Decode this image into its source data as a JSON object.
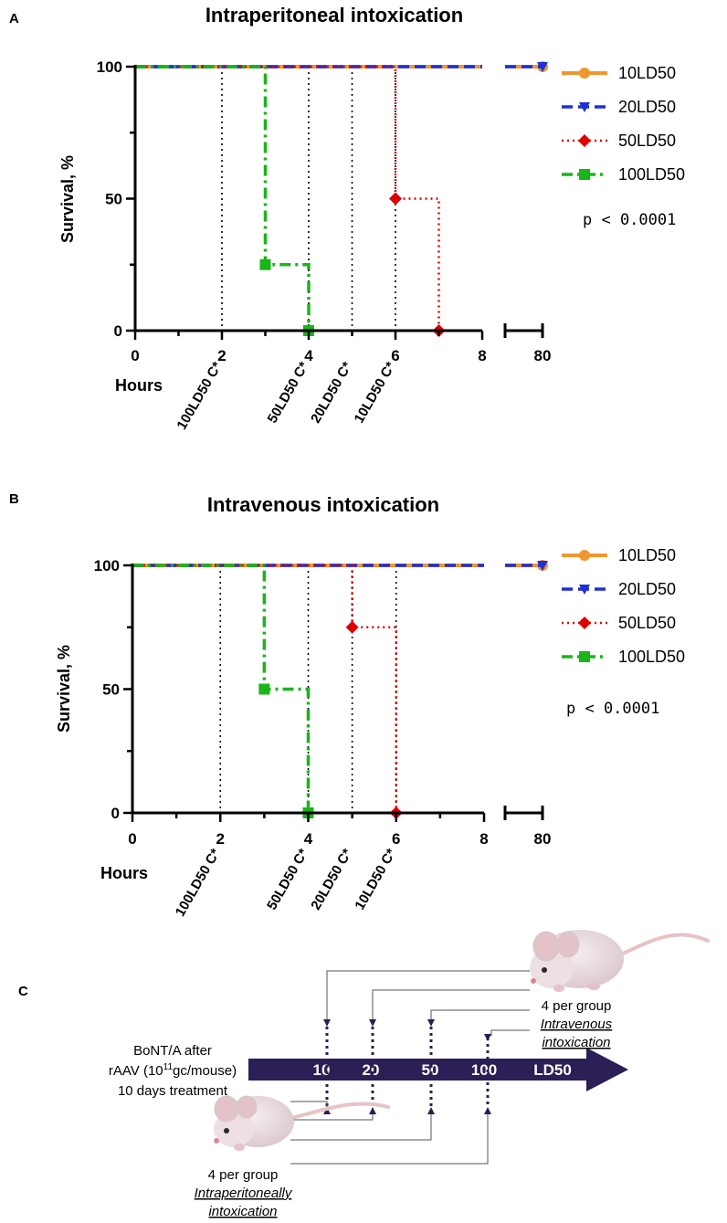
{
  "colors": {
    "10LD50": "#f0962e",
    "20LD50": "#1f2fd6",
    "50LD50": "#e00000",
    "100LD50": "#19b519",
    "arrow": "#2b1f55",
    "connector": "#555555"
  },
  "chart_data": [
    {
      "type": "line",
      "panel_letter": "A",
      "title": "Intraperitoneal intoxication",
      "xlabel": "Hours",
      "ylabel": "Survival, %",
      "xlim_main": [
        0,
        8
      ],
      "x_ticks": [
        "0",
        "2",
        "4",
        "6",
        "8"
      ],
      "x_break_tick": "80",
      "ylim": [
        0,
        100
      ],
      "y_ticks": [
        "0",
        "50",
        "100"
      ],
      "p_value": "p < 0.0001",
      "series": [
        {
          "name": "10LD50",
          "style": "solid",
          "marker": "circle",
          "steps": [
            [
              0,
              100
            ],
            [
              8,
              100
            ]
          ],
          "points": [
            [
              80,
              100
            ]
          ]
        },
        {
          "name": "20LD50",
          "style": "dash",
          "marker": "triangle-down",
          "steps": [
            [
              0,
              100
            ],
            [
              8,
              100
            ]
          ],
          "points": [
            [
              80,
              100
            ]
          ]
        },
        {
          "name": "50LD50",
          "style": "dot",
          "marker": "diamond",
          "steps": [
            [
              0,
              100
            ],
            [
              6,
              100
            ],
            [
              6,
              50
            ],
            [
              7,
              50
            ],
            [
              7,
              0
            ]
          ],
          "points": [
            [
              6,
              50
            ],
            [
              7,
              0
            ]
          ]
        },
        {
          "name": "100LD50",
          "style": "dashdot",
          "marker": "square",
          "steps": [
            [
              0,
              100
            ],
            [
              3,
              100
            ],
            [
              3,
              25
            ],
            [
              4,
              25
            ],
            [
              4,
              0
            ]
          ],
          "points": [
            [
              3,
              25
            ],
            [
              4,
              0
            ]
          ]
        }
      ],
      "time_markers": [
        {
          "x": 2,
          "label": "100LD50 C*"
        },
        {
          "x": 4,
          "label": "50LD50 C*"
        },
        {
          "x": 5,
          "label": "20LD50 C*"
        },
        {
          "x": 6,
          "label": "10LD50 C*"
        }
      ]
    },
    {
      "type": "line",
      "panel_letter": "B",
      "title": "Intravenous intoxication",
      "xlabel": "Hours",
      "ylabel": "Survival, %",
      "xlim_main": [
        0,
        8
      ],
      "x_ticks": [
        "0",
        "2",
        "4",
        "6",
        "8"
      ],
      "x_break_tick": "80",
      "ylim": [
        0,
        100
      ],
      "y_ticks": [
        "0",
        "50",
        "100"
      ],
      "p_value": "p < 0.0001",
      "series": [
        {
          "name": "10LD50",
          "style": "solid",
          "marker": "circle",
          "steps": [
            [
              0,
              100
            ],
            [
              8,
              100
            ]
          ],
          "points": [
            [
              80,
              100
            ]
          ]
        },
        {
          "name": "20LD50",
          "style": "dash",
          "marker": "triangle-down",
          "steps": [
            [
              0,
              100
            ],
            [
              8,
              100
            ]
          ],
          "points": [
            [
              80,
              100
            ]
          ]
        },
        {
          "name": "50LD50",
          "style": "dot",
          "marker": "diamond",
          "steps": [
            [
              0,
              100
            ],
            [
              5,
              100
            ],
            [
              5,
              75
            ],
            [
              6,
              75
            ],
            [
              6,
              0
            ]
          ],
          "points": [
            [
              5,
              75
            ],
            [
              6,
              0
            ]
          ]
        },
        {
          "name": "100LD50",
          "style": "dashdot",
          "marker": "square",
          "steps": [
            [
              0,
              100
            ],
            [
              3,
              100
            ],
            [
              3,
              50
            ],
            [
              4,
              50
            ],
            [
              4,
              0
            ]
          ],
          "points": [
            [
              3,
              50
            ],
            [
              4,
              0
            ]
          ]
        }
      ],
      "time_markers": [
        {
          "x": 2,
          "label": "100LD50 C*"
        },
        {
          "x": 4,
          "label": "50LD50 C*"
        },
        {
          "x": 5,
          "label": "20LD50 C*"
        },
        {
          "x": 6,
          "label": "10LD50 C*"
        }
      ]
    }
  ],
  "diagram": {
    "panel_letter": "C",
    "treatment_lines": [
      "BoNT/A after",
      "rAAV (10",
      "11",
      "gc/mouse)",
      "10 days treatment"
    ],
    "arrow_labels": [
      "10",
      "20",
      "50",
      "100",
      "LD50"
    ],
    "iv_group": {
      "count": "4 per group",
      "route": "Intravenous",
      "suffix": "intoxication"
    },
    "ip_group": {
      "count": "4 per group",
      "route": "Intraperitoneally",
      "suffix": "intoxication"
    }
  }
}
